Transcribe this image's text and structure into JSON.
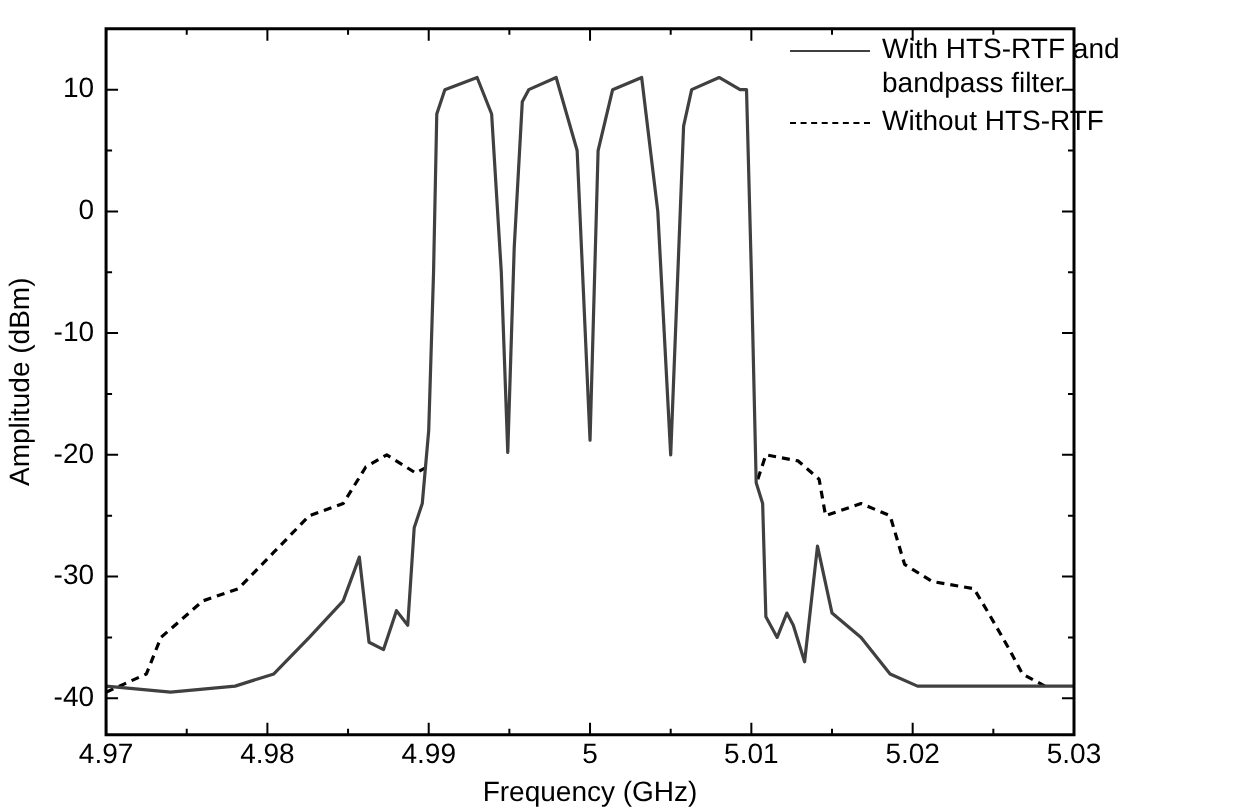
{
  "chart_data": {
    "type": "line",
    "xlabel": "Frequency (GHz)",
    "ylabel": "Amplitude (dBm)",
    "xlim": [
      4.97,
      5.03
    ],
    "ylim": [
      -43,
      15
    ],
    "xticks": [
      4.97,
      {
        "value": 4.975,
        "label": null
      },
      4.98,
      {
        "value": 4.985,
        "label": null
      },
      4.99,
      {
        "value": 4.995,
        "label": null
      },
      5,
      {
        "value": 5.005,
        "label": null
      },
      5.01,
      {
        "value": 5.015,
        "label": null
      },
      5.02,
      {
        "value": 5.025,
        "label": null
      },
      5.03
    ],
    "yticks": [
      -40,
      {
        "value": -35,
        "label": null
      },
      -30,
      {
        "value": -25,
        "label": null
      },
      -20,
      {
        "value": -15,
        "label": null
      },
      -10,
      {
        "value": -5,
        "label": null
      },
      0,
      {
        "value": 5,
        "label": null
      },
      10
    ],
    "grid": false,
    "legend": "top right",
    "marker": "none",
    "series": [
      {
        "name": "With HTS-RTF and bandpass filter",
        "color": "#404040",
        "line_style": "solid",
        "x": [
          4.97,
          4.974,
          4.978,
          4.9804,
          4.9826,
          4.9847,
          4.9857,
          4.9863,
          4.9872,
          4.988,
          4.9887,
          4.9891,
          4.9896,
          4.99,
          4.9903,
          4.9905,
          4.991,
          4.993,
          4.9939,
          4.9945,
          4.9949,
          4.9953,
          4.9958,
          4.9962,
          4.9979,
          4.9992,
          5.0,
          5.0005,
          5.0014,
          5.0032,
          5.0042,
          5.005,
          5.0058,
          5.0063,
          5.008,
          5.0093,
          5.0097,
          5.01,
          5.0103,
          5.0107,
          5.0109,
          5.0116,
          5.0122,
          5.0126,
          5.0133,
          5.0141,
          5.015,
          5.0168,
          5.0186,
          5.0203,
          5.0247,
          5.03
        ],
        "values": [
          -39,
          -39.5,
          -39,
          -38,
          -35,
          -32,
          -28.4,
          -35.4,
          -36,
          -32.8,
          -34,
          -26,
          -24,
          -18,
          -5,
          8,
          10,
          11,
          8,
          -5,
          -19.8,
          -3,
          9,
          10,
          11,
          5,
          -18.8,
          5,
          10,
          11,
          0,
          -20,
          7,
          10,
          11,
          10,
          10,
          -5,
          -22.3,
          -24,
          -33.3,
          -35,
          -33,
          -34,
          -37,
          -27.5,
          -33,
          -35,
          -38,
          -39,
          -39,
          -39
        ]
      },
      {
        "name": "Without HTS-RTF",
        "color": "#000000",
        "line_style": "dashed",
        "x": [
          4.97,
          4.9725,
          4.9734,
          4.976,
          4.9782,
          4.9804,
          4.9826,
          4.9847,
          4.9861,
          4.9874,
          4.9892,
          4.9899,
          4.995,
          5.0104,
          5.0109,
          5.0129,
          5.0142,
          5.0146,
          5.0168,
          5.0186,
          5.0195,
          5.0212,
          5.0238,
          5.0247,
          5.026,
          5.0268,
          5.0282
        ],
        "values": [
          -39.5,
          -38,
          -35,
          -32,
          -31,
          -28,
          -25,
          -24,
          -21,
          -20,
          -21.5,
          -21,
          null,
          -22,
          -20,
          -20.5,
          -22,
          -25,
          -24,
          -25,
          -29,
          -30.4,
          -31,
          -33,
          -36,
          -38,
          -39
        ]
      }
    ]
  }
}
